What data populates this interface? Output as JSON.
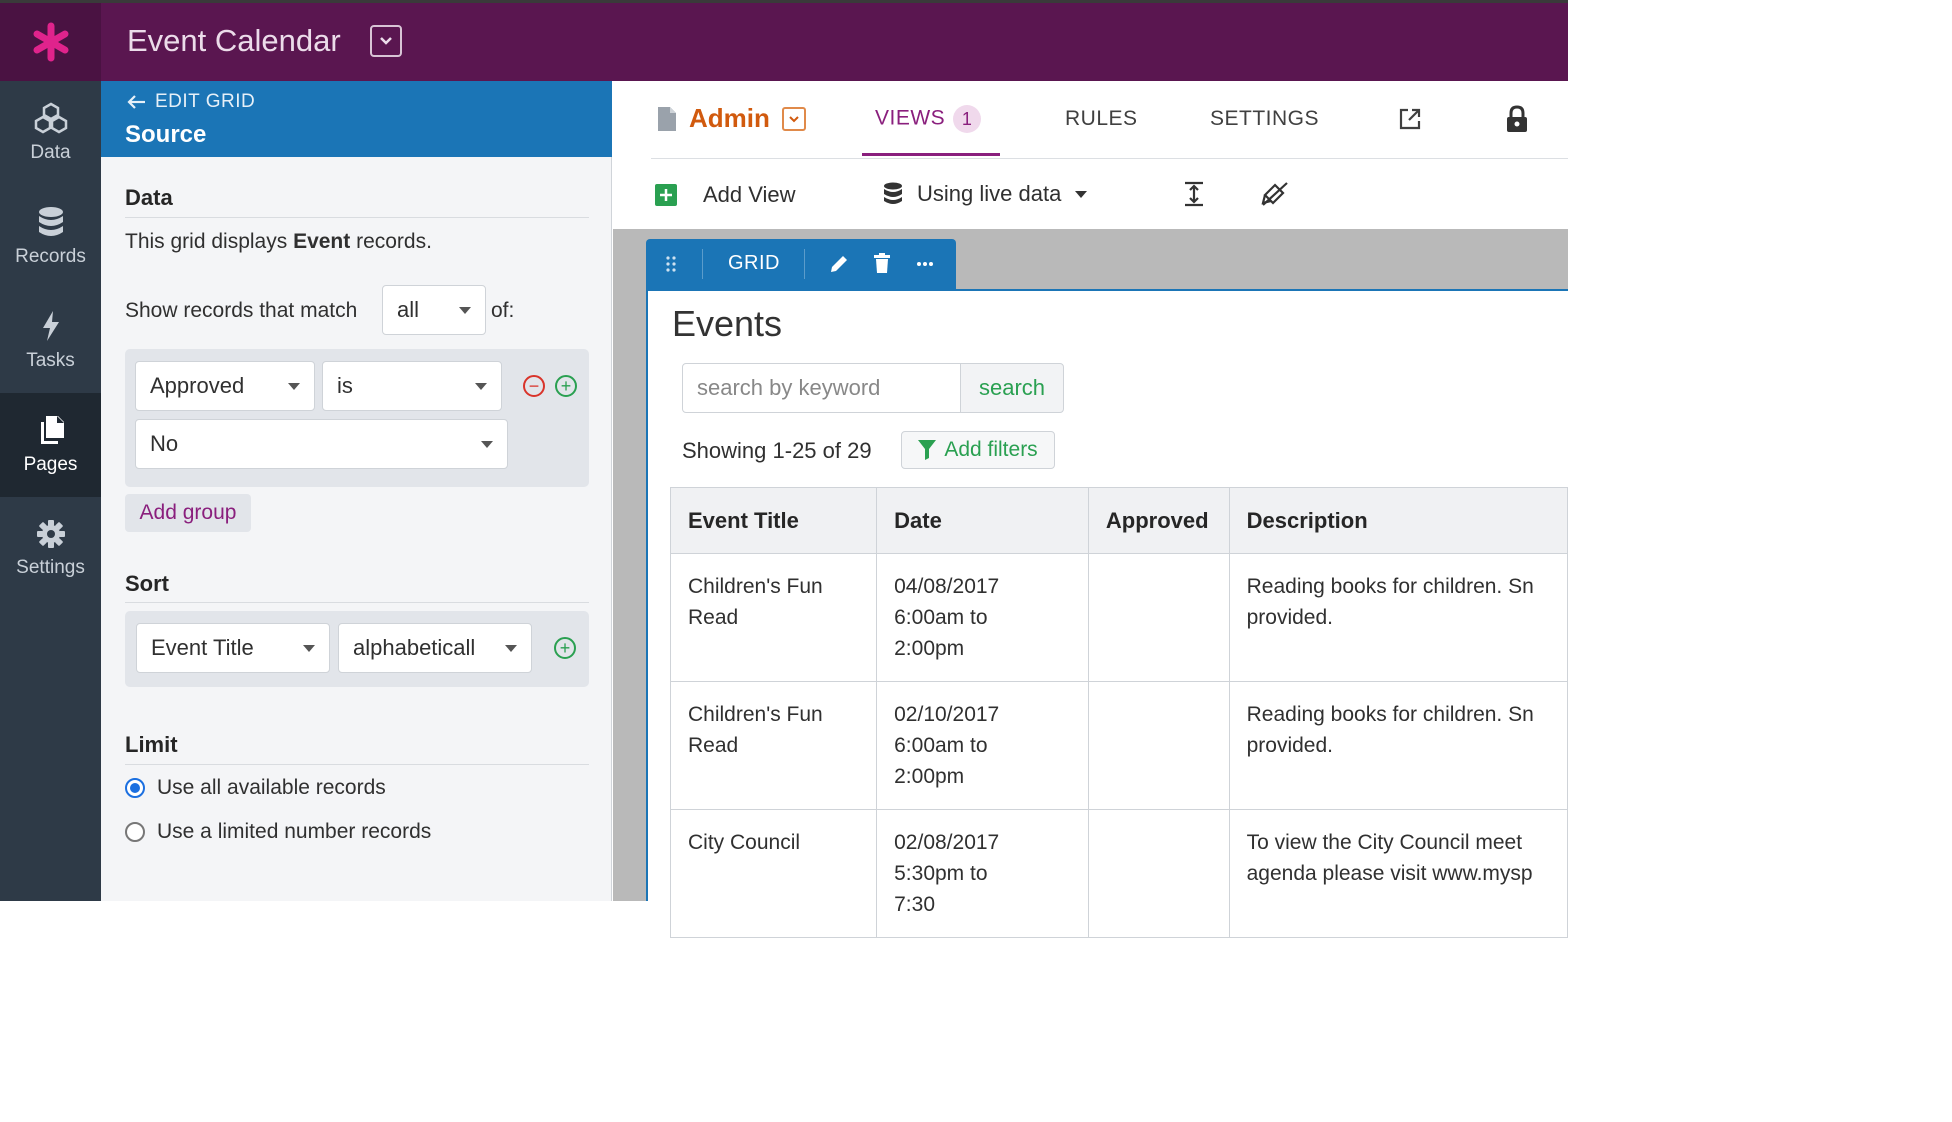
{
  "app": {
    "title": "Event Calendar"
  },
  "nav": {
    "items": [
      {
        "label": "Data",
        "icon": "cubes-icon"
      },
      {
        "label": "Records",
        "icon": "database-icon"
      },
      {
        "label": "Tasks",
        "icon": "bolt-icon"
      },
      {
        "label": "Pages",
        "icon": "pages-icon",
        "active": true
      },
      {
        "label": "Settings",
        "icon": "gear-icon"
      }
    ]
  },
  "panel": {
    "back_label": "EDIT GRID",
    "title": "Source",
    "data_section": {
      "title": "Data",
      "description_prefix": "This grid displays ",
      "description_object": "Event",
      "description_suffix": " records."
    },
    "match": {
      "prefix": "Show records that match",
      "value": "all",
      "suffix": "of:"
    },
    "rule": {
      "field": "Approved",
      "operator": "is",
      "value": "No"
    },
    "add_group_label": "Add group",
    "sort": {
      "title": "Sort",
      "field": "Event Title",
      "order": "alphabeticall"
    },
    "limit": {
      "title": "Limit",
      "options": [
        "Use all available records",
        "Use a limited number records"
      ],
      "selected": 0
    }
  },
  "main": {
    "page_name": "Admin",
    "tabs": {
      "views": "VIEWS",
      "views_count": "1",
      "rules": "RULES",
      "settings": "SETTINGS"
    },
    "toolbar": {
      "add_view": "Add View",
      "data_mode": "Using live data"
    },
    "grid_tab_label": "GRID",
    "grid": {
      "title": "Events",
      "search_placeholder": "search by keyword",
      "search_button": "search",
      "showing": "Showing 1-25 of 29",
      "add_filters": "Add filters",
      "columns": [
        "Event Title",
        "Date",
        "Approved",
        "Description"
      ],
      "rows": [
        {
          "title_l1": "Children's Fun",
          "title_l2": "Read",
          "date_l1": "04/08/2017",
          "date_l2": "6:00am to",
          "date_l3": "2:00pm",
          "approved": "",
          "desc_l1": "Reading books for children. Sn",
          "desc_l2": "provided."
        },
        {
          "title_l1": "Children's Fun",
          "title_l2": "Read",
          "date_l1": "02/10/2017",
          "date_l2": "6:00am to",
          "date_l3": "2:00pm",
          "approved": "",
          "desc_l1": "Reading books for children. Sn",
          "desc_l2": "provided."
        },
        {
          "title_l1": "City Council",
          "title_l2": "",
          "date_l1": "02/08/2017",
          "date_l2": "5:30pm to",
          "date_l3": "7:30",
          "approved": "",
          "desc_l1": "To view the City Council meet",
          "desc_l2": "agenda please visit www.mysp"
        }
      ]
    }
  },
  "colors": {
    "topbar": "#5a1650",
    "accent": "#8a1f7d",
    "blue": "#1b75b6",
    "green": "#2aa051",
    "orange": "#d15a0e"
  }
}
